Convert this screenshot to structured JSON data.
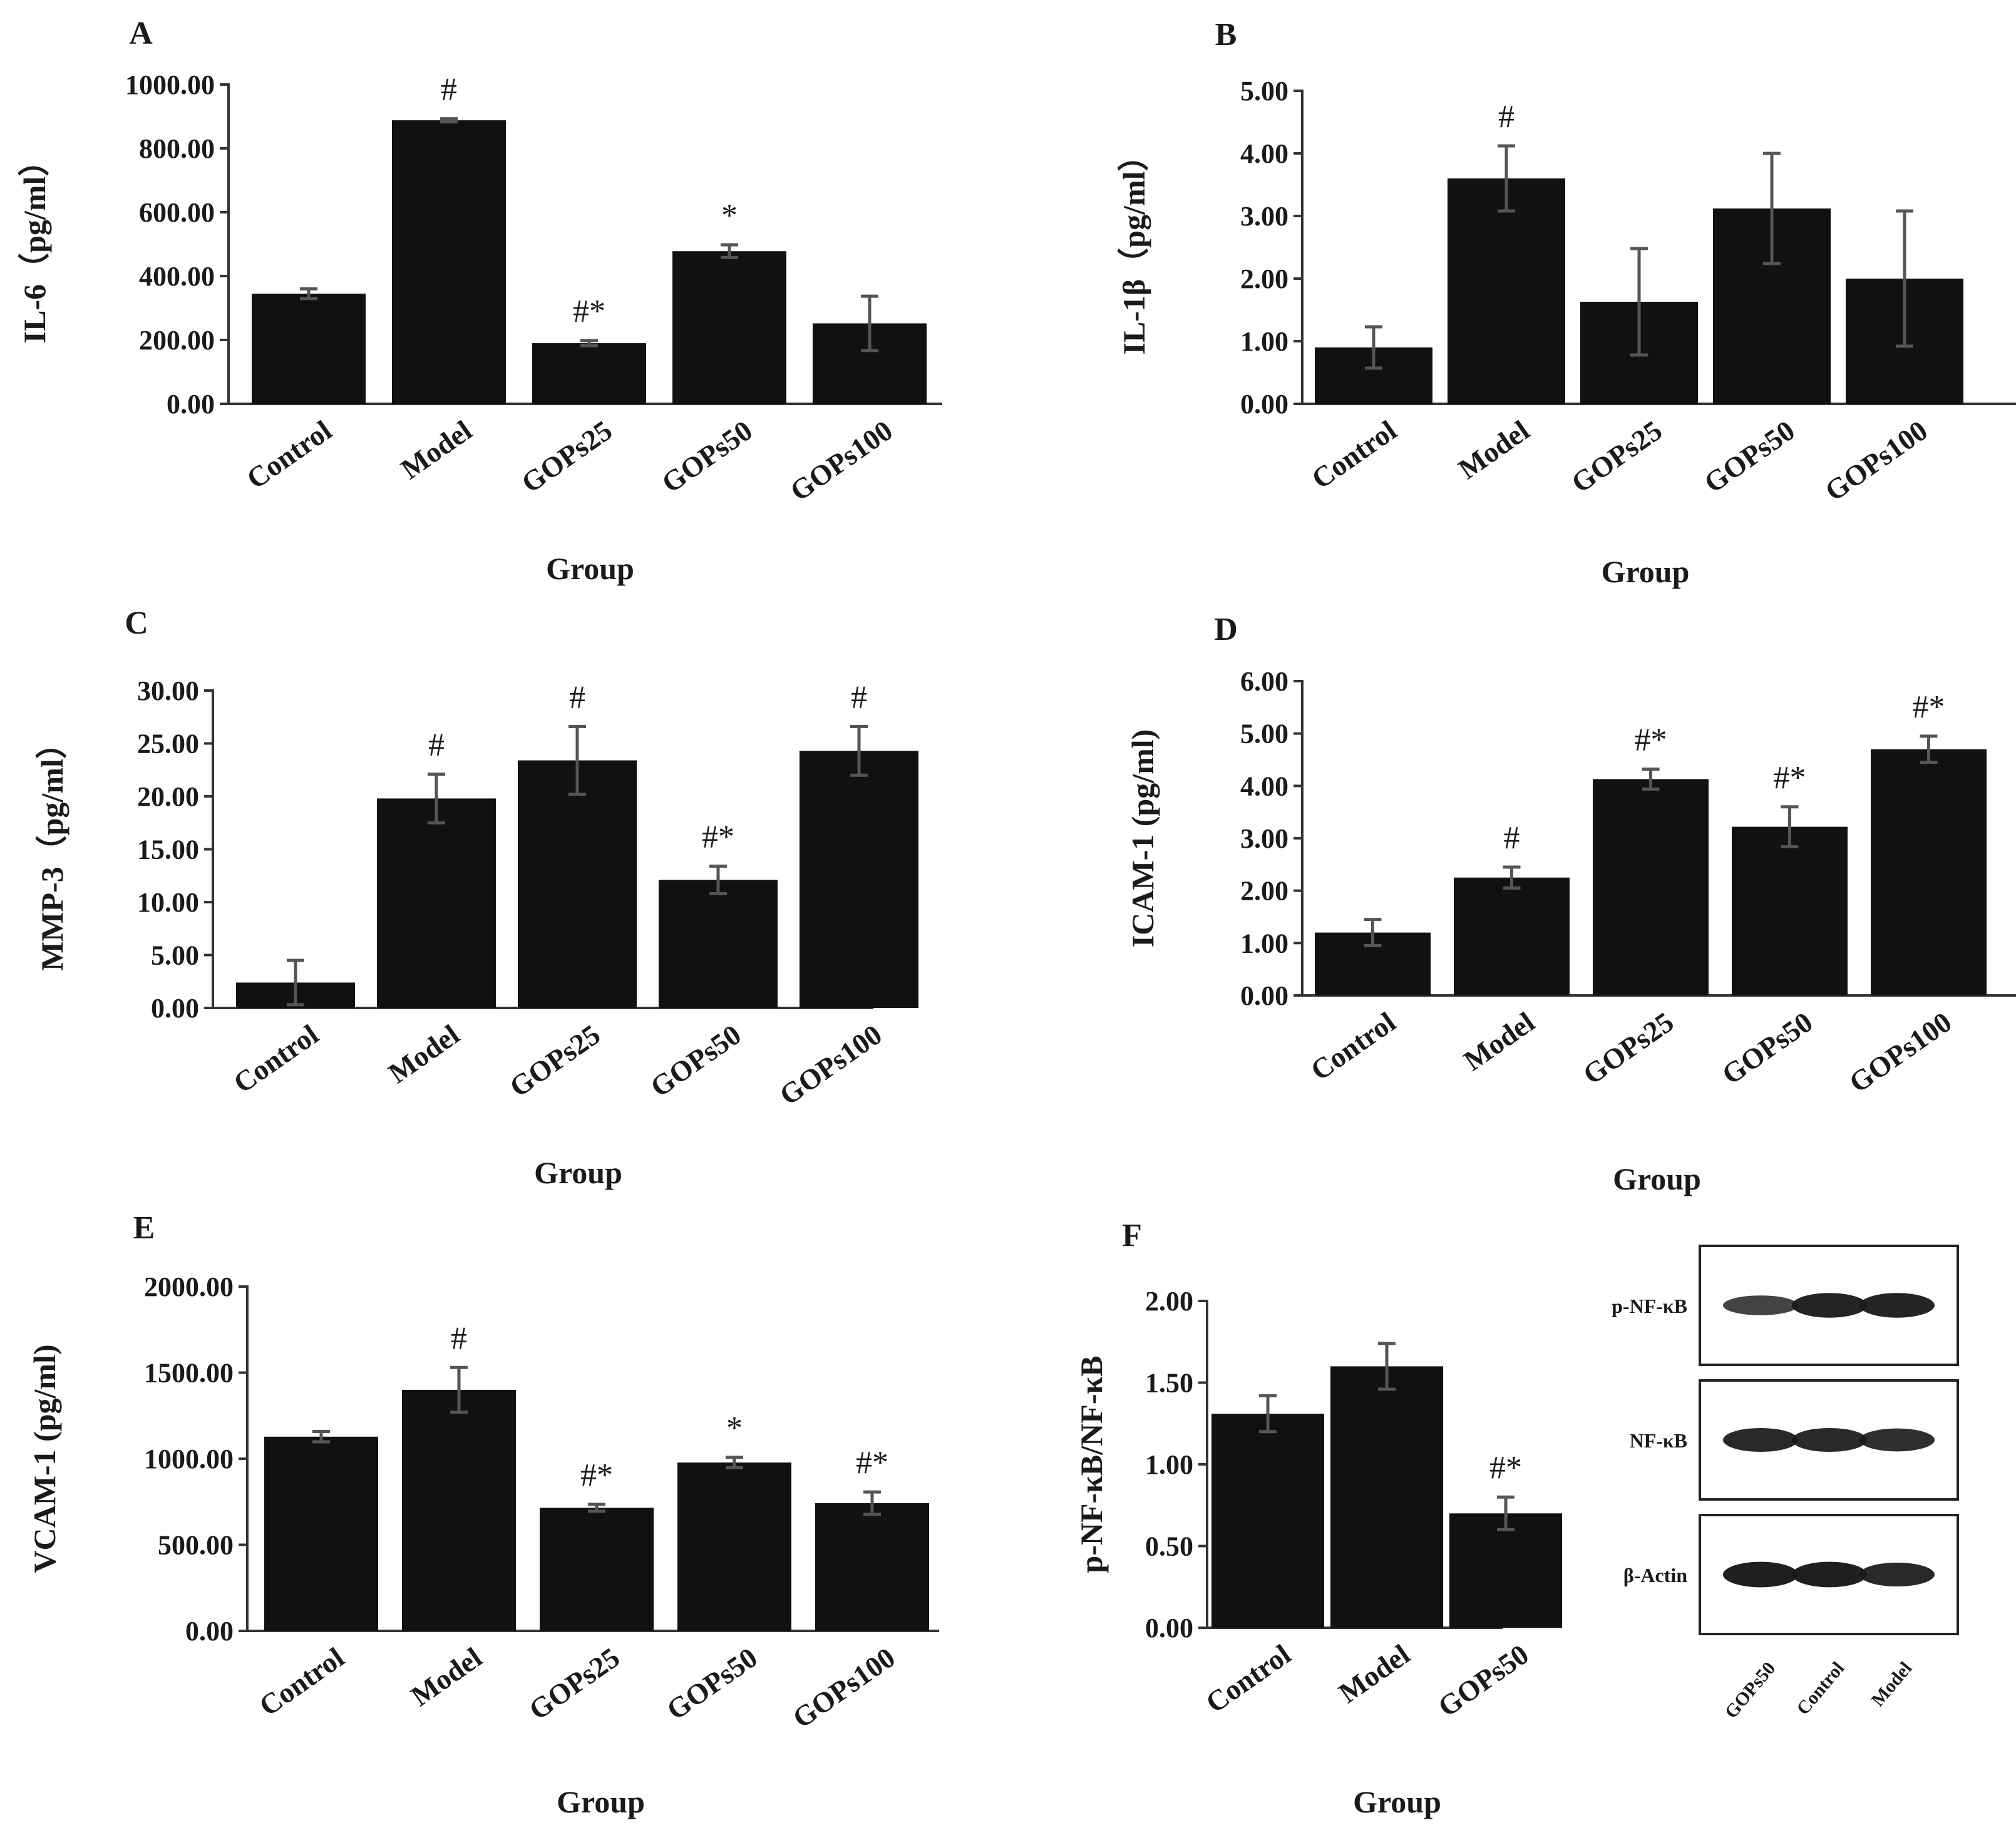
{
  "figure": {
    "background": "#ffffff",
    "bar_color": "#111111",
    "error_color": "#555555"
  },
  "chart_data": [
    {
      "panel": "A",
      "type": "bar",
      "categories": [
        "Control",
        "Model",
        "GOPs25",
        "GOPs50",
        "GOPs100"
      ],
      "values": [
        345,
        888,
        190,
        478,
        252
      ],
      "errors": [
        15,
        5,
        8,
        20,
        85
      ],
      "annotations": [
        "",
        "#",
        "#*",
        "*",
        ""
      ],
      "ylabel": "IL-6（pg/ml）",
      "xlabel": "Group",
      "ylim": [
        0,
        1000
      ],
      "yticks": [
        0,
        200,
        400,
        600,
        800,
        1000
      ],
      "ytick_labels": [
        "0.00",
        "200.00",
        "400.00",
        "600.00",
        "800.00",
        "1000.00"
      ]
    },
    {
      "panel": "B",
      "type": "bar",
      "categories": [
        "Control",
        "Model",
        "GOPs25",
        "GOPs50",
        "GOPs100"
      ],
      "values": [
        0.9,
        3.6,
        1.63,
        3.12,
        2.0
      ],
      "errors": [
        0.33,
        0.52,
        0.85,
        0.88,
        1.08
      ],
      "annotations": [
        "",
        "#",
        "",
        "",
        ""
      ],
      "ylabel": "IL-1β（pg/ml）",
      "xlabel": "Group",
      "ylim": [
        0,
        5
      ],
      "yticks": [
        0,
        1,
        2,
        3,
        4,
        5
      ],
      "ytick_labels": [
        "0.00",
        "1.00",
        "2.00",
        "3.00",
        "4.00",
        "5.00"
      ]
    },
    {
      "panel": "C",
      "type": "bar",
      "categories": [
        "Control",
        "Model",
        "GOPs25",
        "GOPs50",
        "GOPs100"
      ],
      "values": [
        2.4,
        19.8,
        23.4,
        12.1,
        24.3
      ],
      "errors": [
        2.1,
        2.3,
        3.2,
        1.3,
        2.3
      ],
      "annotations": [
        "",
        "#",
        "#",
        "#*",
        "#"
      ],
      "ylabel": "MMP-3（pg/ml）",
      "xlabel": "Group",
      "ylim": [
        0,
        30
      ],
      "yticks": [
        0,
        5,
        10,
        15,
        20,
        25,
        30
      ],
      "ytick_labels": [
        "0.00",
        "5.00",
        "10.00",
        "15.00",
        "20.00",
        "25.00",
        "30.00"
      ]
    },
    {
      "panel": "D",
      "type": "bar",
      "categories": [
        "Control",
        "Model",
        "GOPs25",
        "GOPs50",
        "GOPs100"
      ],
      "values": [
        1.2,
        2.25,
        4.13,
        3.22,
        4.7
      ],
      "errors": [
        0.25,
        0.2,
        0.19,
        0.38,
        0.25
      ],
      "annotations": [
        "",
        "#",
        "#*",
        "#*",
        "#*"
      ],
      "ylabel": "ICAM-1 (pg/ml)",
      "xlabel": "Group",
      "ylim": [
        0,
        6
      ],
      "yticks": [
        0,
        1,
        2,
        3,
        4,
        5,
        6
      ],
      "ytick_labels": [
        "0.00",
        "1.00",
        "2.00",
        "3.00",
        "4.00",
        "5.00",
        "6.00"
      ]
    },
    {
      "panel": "E",
      "type": "bar",
      "categories": [
        "Control",
        "Model",
        "GOPs25",
        "GOPs50",
        "GOPs100"
      ],
      "values": [
        1128,
        1400,
        715,
        978,
        742
      ],
      "errors": [
        30,
        130,
        20,
        30,
        65
      ],
      "annotations": [
        "",
        "#",
        "#*",
        "*",
        "#*"
      ],
      "ylabel": "VCAM-1 (pg/ml)",
      "xlabel": "Group",
      "ylim": [
        0,
        2000
      ],
      "yticks": [
        0,
        500,
        1000,
        1500,
        2000
      ],
      "ytick_labels": [
        "0.00",
        "500.00",
        "1000.00",
        "1500.00",
        "2000.00"
      ]
    },
    {
      "panel": "F",
      "type": "bar",
      "categories": [
        "Control",
        "Model",
        "GOPs50"
      ],
      "values": [
        1.31,
        1.6,
        0.7
      ],
      "errors": [
        0.11,
        0.14,
        0.1
      ],
      "annotations": [
        "",
        "",
        "#*"
      ],
      "ylabel": "p-NF-κB/NF-κB",
      "xlabel": "Group",
      "ylim": [
        0,
        2
      ],
      "yticks": [
        0,
        0.5,
        1,
        1.5,
        2
      ],
      "ytick_labels": [
        "0.00",
        "0.50",
        "1.00",
        "1.50",
        "2.00"
      ]
    }
  ],
  "western_blot": {
    "rows": [
      {
        "label": "p-NF-κB",
        "intensity": [
          0.6,
          0.9,
          0.9
        ]
      },
      {
        "label": "NF-κB",
        "intensity": [
          0.85,
          0.85,
          0.8
        ]
      },
      {
        "label": "β-Actin",
        "intensity": [
          0.95,
          0.95,
          0.85
        ]
      }
    ],
    "lanes": [
      "GOPs50",
      "Control",
      "Model"
    ]
  }
}
